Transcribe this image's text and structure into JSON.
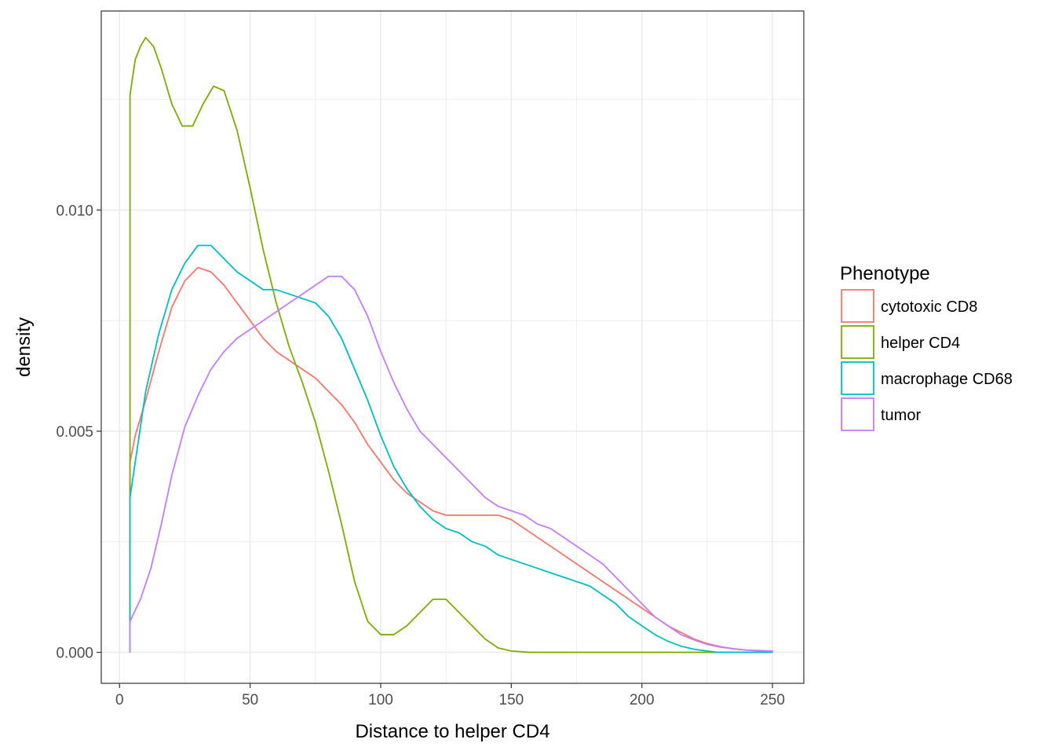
{
  "chart_data": {
    "type": "line",
    "title": "",
    "xlabel": "Distance to helper CD4",
    "ylabel": "density",
    "xlim": [
      -7,
      262
    ],
    "ylim": [
      -0.0007,
      0.0145
    ],
    "x_ticks": [
      0,
      50,
      100,
      150,
      200,
      250
    ],
    "x_tick_labels": [
      "0",
      "50",
      "100",
      "150",
      "200",
      "250"
    ],
    "y_ticks": [
      0.0,
      0.005,
      0.01
    ],
    "y_tick_labels": [
      "0.000",
      "0.005",
      "0.010"
    ],
    "y_minor_ticks": [
      0.0025,
      0.0075,
      0.0125
    ],
    "grid": true,
    "legend": {
      "title": "Phenotype",
      "placement": "right"
    },
    "series": [
      {
        "name": "cytotoxic CD8",
        "color": "#F8766D",
        "points": [
          [
            4,
            0
          ],
          [
            4,
            0.0043
          ],
          [
            6,
            0.0049
          ],
          [
            10,
            0.0057
          ],
          [
            15,
            0.0068
          ],
          [
            20,
            0.0078
          ],
          [
            25,
            0.0084
          ],
          [
            30,
            0.0087
          ],
          [
            35,
            0.0086
          ],
          [
            40,
            0.0083
          ],
          [
            45,
            0.0079
          ],
          [
            50,
            0.0075
          ],
          [
            55,
            0.0071
          ],
          [
            60,
            0.0068
          ],
          [
            65,
            0.0066
          ],
          [
            70,
            0.0064
          ],
          [
            75,
            0.0062
          ],
          [
            80,
            0.0059
          ],
          [
            85,
            0.0056
          ],
          [
            90,
            0.0052
          ],
          [
            95,
            0.0047
          ],
          [
            100,
            0.0043
          ],
          [
            105,
            0.0039
          ],
          [
            110,
            0.0036
          ],
          [
            115,
            0.0034
          ],
          [
            120,
            0.0032
          ],
          [
            125,
            0.0031
          ],
          [
            130,
            0.0031
          ],
          [
            135,
            0.0031
          ],
          [
            140,
            0.0031
          ],
          [
            145,
            0.0031
          ],
          [
            150,
            0.003
          ],
          [
            155,
            0.0028
          ],
          [
            160,
            0.0026
          ],
          [
            165,
            0.0024
          ],
          [
            170,
            0.0022
          ],
          [
            175,
            0.002
          ],
          [
            180,
            0.0018
          ],
          [
            185,
            0.0016
          ],
          [
            190,
            0.0014
          ],
          [
            195,
            0.0012
          ],
          [
            200,
            0.001
          ],
          [
            205,
            0.0008
          ],
          [
            210,
            0.0006
          ],
          [
            215,
            0.00045
          ],
          [
            220,
            0.0003
          ],
          [
            225,
            0.0002
          ],
          [
            230,
            0.00013
          ],
          [
            235,
            8e-05
          ],
          [
            240,
            5e-05
          ],
          [
            245,
            3e-05
          ],
          [
            250,
            2e-05
          ],
          [
            250,
            0
          ]
        ]
      },
      {
        "name": "helper CD4",
        "color": "#7CAE00",
        "points": [
          [
            4,
            0
          ],
          [
            4,
            0.0126
          ],
          [
            6,
            0.0134
          ],
          [
            8,
            0.0137
          ],
          [
            10,
            0.0139
          ],
          [
            13,
            0.0137
          ],
          [
            16,
            0.0132
          ],
          [
            20,
            0.0124
          ],
          [
            24,
            0.0119
          ],
          [
            28,
            0.0119
          ],
          [
            32,
            0.0124
          ],
          [
            36,
            0.0128
          ],
          [
            40,
            0.0127
          ],
          [
            45,
            0.0118
          ],
          [
            50,
            0.0105
          ],
          [
            55,
            0.0091
          ],
          [
            60,
            0.0079
          ],
          [
            65,
            0.0069
          ],
          [
            70,
            0.0061
          ],
          [
            75,
            0.0052
          ],
          [
            80,
            0.0041
          ],
          [
            85,
            0.0029
          ],
          [
            90,
            0.0016
          ],
          [
            95,
            0.0007
          ],
          [
            100,
            0.0004
          ],
          [
            105,
            0.0004
          ],
          [
            110,
            0.0006
          ],
          [
            115,
            0.0009
          ],
          [
            120,
            0.0012
          ],
          [
            125,
            0.0012
          ],
          [
            130,
            0.0009
          ],
          [
            135,
            0.0006
          ],
          [
            140,
            0.0003
          ],
          [
            145,
            0.0001
          ],
          [
            150,
            3e-05
          ],
          [
            157,
            0
          ],
          [
            250,
            0
          ]
        ]
      },
      {
        "name": "macrophage CD68",
        "color": "#00BFC4",
        "points": [
          [
            4,
            0
          ],
          [
            4,
            0.0035
          ],
          [
            7,
            0.0047
          ],
          [
            10,
            0.0059
          ],
          [
            15,
            0.0072
          ],
          [
            20,
            0.0082
          ],
          [
            25,
            0.0088
          ],
          [
            30,
            0.0092
          ],
          [
            35,
            0.0092
          ],
          [
            40,
            0.0089
          ],
          [
            45,
            0.0086
          ],
          [
            50,
            0.0084
          ],
          [
            55,
            0.0082
          ],
          [
            60,
            0.0082
          ],
          [
            65,
            0.0081
          ],
          [
            70,
            0.008
          ],
          [
            75,
            0.0079
          ],
          [
            80,
            0.0076
          ],
          [
            85,
            0.0071
          ],
          [
            90,
            0.0064
          ],
          [
            95,
            0.0057
          ],
          [
            100,
            0.0049
          ],
          [
            105,
            0.0042
          ],
          [
            110,
            0.0037
          ],
          [
            115,
            0.0033
          ],
          [
            120,
            0.003
          ],
          [
            125,
            0.0028
          ],
          [
            130,
            0.0027
          ],
          [
            135,
            0.0025
          ],
          [
            140,
            0.0024
          ],
          [
            145,
            0.0022
          ],
          [
            150,
            0.0021
          ],
          [
            155,
            0.002
          ],
          [
            160,
            0.0019
          ],
          [
            165,
            0.0018
          ],
          [
            170,
            0.0017
          ],
          [
            175,
            0.0016
          ],
          [
            180,
            0.0015
          ],
          [
            185,
            0.0013
          ],
          [
            190,
            0.0011
          ],
          [
            195,
            0.0008
          ],
          [
            200,
            0.0006
          ],
          [
            205,
            0.0004
          ],
          [
            210,
            0.00025
          ],
          [
            215,
            0.00014
          ],
          [
            220,
            7e-05
          ],
          [
            225,
            3e-05
          ],
          [
            229,
            0
          ],
          [
            250,
            0
          ]
        ]
      },
      {
        "name": "tumor",
        "color": "#C77CFF",
        "points": [
          [
            4,
            0
          ],
          [
            4,
            0.0007
          ],
          [
            8,
            0.0012
          ],
          [
            12,
            0.0019
          ],
          [
            16,
            0.0029
          ],
          [
            20,
            0.004
          ],
          [
            25,
            0.0051
          ],
          [
            30,
            0.0058
          ],
          [
            35,
            0.0064
          ],
          [
            40,
            0.0068
          ],
          [
            45,
            0.0071
          ],
          [
            50,
            0.0073
          ],
          [
            55,
            0.0075
          ],
          [
            60,
            0.0077
          ],
          [
            65,
            0.0079
          ],
          [
            70,
            0.0081
          ],
          [
            75,
            0.0083
          ],
          [
            80,
            0.0085
          ],
          [
            85,
            0.0085
          ],
          [
            90,
            0.0082
          ],
          [
            95,
            0.0076
          ],
          [
            100,
            0.0068
          ],
          [
            105,
            0.0061
          ],
          [
            110,
            0.0055
          ],
          [
            115,
            0.005
          ],
          [
            120,
            0.0047
          ],
          [
            125,
            0.0044
          ],
          [
            130,
            0.0041
          ],
          [
            135,
            0.0038
          ],
          [
            140,
            0.0035
          ],
          [
            145,
            0.0033
          ],
          [
            150,
            0.0032
          ],
          [
            155,
            0.0031
          ],
          [
            160,
            0.0029
          ],
          [
            165,
            0.0028
          ],
          [
            170,
            0.0026
          ],
          [
            175,
            0.0024
          ],
          [
            180,
            0.0022
          ],
          [
            185,
            0.002
          ],
          [
            190,
            0.0017
          ],
          [
            195,
            0.0014
          ],
          [
            200,
            0.0011
          ],
          [
            205,
            0.0008
          ],
          [
            210,
            0.0006
          ],
          [
            215,
            0.0004
          ],
          [
            220,
            0.00028
          ],
          [
            225,
            0.00018
          ],
          [
            230,
            0.00012
          ],
          [
            235,
            8e-05
          ],
          [
            240,
            5e-05
          ],
          [
            245,
            4e-05
          ],
          [
            250,
            3e-05
          ],
          [
            250,
            0
          ]
        ]
      }
    ]
  }
}
